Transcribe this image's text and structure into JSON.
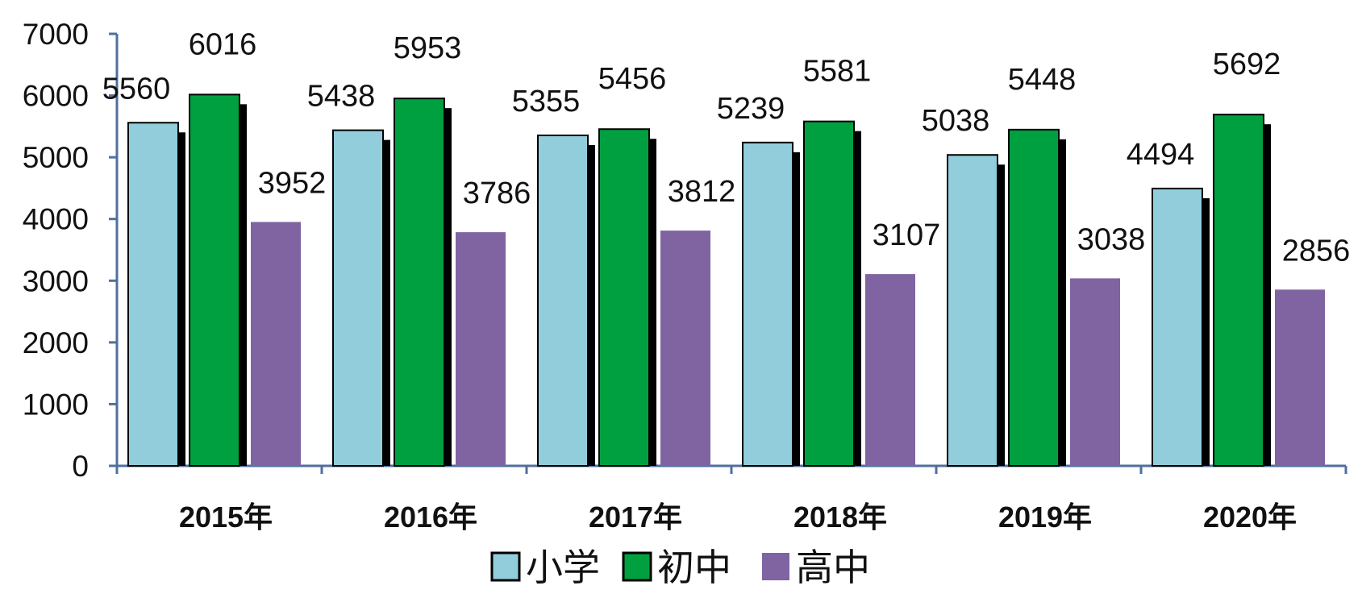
{
  "chart_data": {
    "type": "bar",
    "categories": [
      "2015年",
      "2016年",
      "2017年",
      "2018年",
      "2019年",
      "2020年"
    ],
    "series": [
      {
        "name": "小学",
        "values": [
          5560,
          5438,
          5355,
          5239,
          5038,
          4494
        ],
        "color": "#92cddc"
      },
      {
        "name": "初中",
        "values": [
          6016,
          5953,
          5456,
          5581,
          5448,
          5692
        ],
        "color": "#00a040"
      },
      {
        "name": "高中",
        "values": [
          3952,
          3786,
          3812,
          3107,
          3038,
          2856
        ],
        "color": "#8064a2"
      }
    ],
    "y_ticks": [
      "0",
      "1000",
      "2000",
      "3000",
      "4000",
      "5000",
      "6000",
      "7000"
    ],
    "ylim": [
      0,
      7000
    ],
    "legend_position": "bottom",
    "grid": false,
    "title": "",
    "xlabel": "",
    "ylabel": ""
  }
}
